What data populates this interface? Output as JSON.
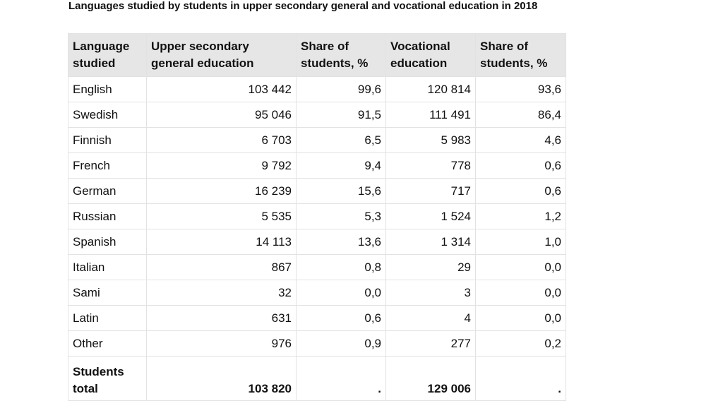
{
  "title": "Languages studied by students in upper secondary general and vocational education in 2018",
  "headers": [
    "Language studied",
    "Upper secondary general education",
    "Share of students, %",
    "Vocational education",
    "Share of students, %"
  ],
  "rows": [
    [
      "English",
      "103 442",
      "99,6",
      "120 814",
      "93,6"
    ],
    [
      "Swedish",
      "95 046",
      "91,5",
      "111 491",
      "86,4"
    ],
    [
      "Finnish",
      "6 703",
      "6,5",
      "5 983",
      "4,6"
    ],
    [
      "French",
      "9 792",
      "9,4",
      "778",
      "0,6"
    ],
    [
      "German",
      "16 239",
      "15,6",
      "717",
      "0,6"
    ],
    [
      "Russian",
      "5 535",
      "5,3",
      "1 524",
      "1,2"
    ],
    [
      "Spanish",
      "14 113",
      "13,6",
      "1 314",
      "1,0"
    ],
    [
      "Italian",
      "867",
      "0,8",
      "29",
      "0,0"
    ],
    [
      "Sami",
      "32",
      "0,0",
      "3",
      "0,0"
    ],
    [
      "Latin",
      "631",
      "0,6",
      "4",
      "0,0"
    ],
    [
      "Other",
      "976",
      "0,9",
      "277",
      "0,2"
    ]
  ],
  "total": [
    "Students total",
    "103 820",
    ".",
    "129 006",
    "."
  ]
}
